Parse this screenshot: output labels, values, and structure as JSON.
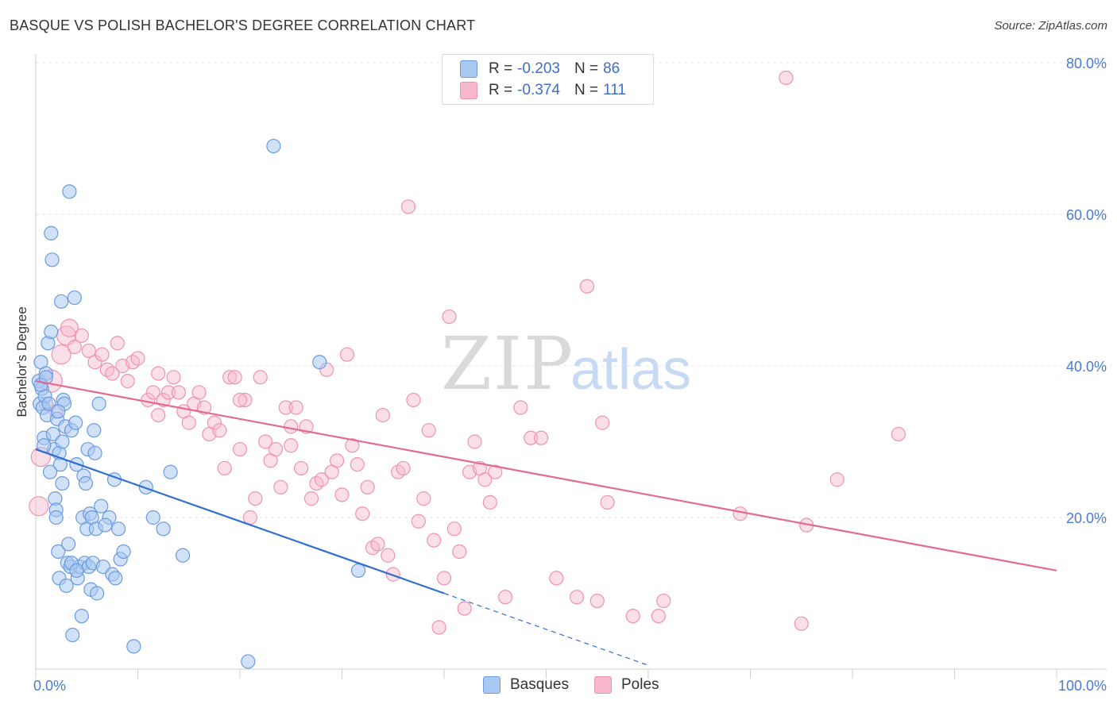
{
  "header": {
    "title": "BASQUE VS POLISH BACHELOR'S DEGREE CORRELATION CHART",
    "source": "Source: ZipAtlas.com"
  },
  "watermark": {
    "zip": "ZIP",
    "atlas": "atlas"
  },
  "legend_top": {
    "rows": [
      {
        "r_label": "R = ",
        "r_value": "-0.203",
        "n_label": "N = ",
        "n_value": "86",
        "color": "#a9c8f2"
      },
      {
        "r_label": "R = ",
        "r_value": "-0.374",
        "n_label": "N = ",
        "n_value": "111",
        "color": "#f7b8cc"
      }
    ]
  },
  "legend_bottom": {
    "items": [
      {
        "label": "Basques",
        "color": "#a9c8f2"
      },
      {
        "label": "Poles",
        "color": "#f7b8cc"
      }
    ]
  },
  "colors": {
    "basques_fill": "#a9c8f2",
    "basques_stroke": "#6a9be0",
    "basques_line": "#2f6fd4",
    "poles_fill": "#f7b8cc",
    "poles_stroke": "#ee93b0",
    "poles_line": "#e26a93",
    "tick_text": "#4a7bd0"
  },
  "chart_data": {
    "type": "scatter",
    "title": "BASQUE VS POLISH BACHELOR'S DEGREE CORRELATION CHART",
    "xlabel": "",
    "ylabel": "Bachelor's Degree",
    "xlim": [
      0,
      100
    ],
    "ylim": [
      0,
      82
    ],
    "x_tick_labels": [
      "0.0%",
      "100.0%"
    ],
    "y_ticks": [
      20,
      40,
      60,
      80
    ],
    "y_tick_labels": [
      "20.0%",
      "40.0%",
      "60.0%",
      "80.0%"
    ],
    "grid": true,
    "series": [
      {
        "name": "Basques",
        "trend": {
          "x0": 0,
          "y0": 29.0,
          "x1": 40,
          "y1": 10.0,
          "dashed_to_x": 60,
          "dashed_to_y": 0.5
        },
        "points": [
          [
            0.3,
            38.0
          ],
          [
            0.4,
            35.0
          ],
          [
            0.5,
            40.5
          ],
          [
            0.6,
            37.0
          ],
          [
            0.7,
            34.5
          ],
          [
            0.8,
            30.5
          ],
          [
            0.9,
            36.0
          ],
          [
            1.0,
            39.0
          ],
          [
            1.1,
            33.5
          ],
          [
            1.2,
            43.0
          ],
          [
            1.3,
            35.0
          ],
          [
            1.5,
            44.5
          ],
          [
            1.5,
            57.5
          ],
          [
            1.6,
            54.0
          ],
          [
            1.7,
            31.0
          ],
          [
            1.8,
            29.0
          ],
          [
            1.9,
            22.5
          ],
          [
            2.0,
            21.0
          ],
          [
            2.0,
            20.0
          ],
          [
            2.1,
            33.0
          ],
          [
            2.2,
            15.5
          ],
          [
            2.3,
            28.5
          ],
          [
            2.3,
            12.0
          ],
          [
            2.4,
            27.0
          ],
          [
            2.5,
            48.5
          ],
          [
            2.6,
            24.5
          ],
          [
            2.7,
            35.5
          ],
          [
            2.8,
            35.0
          ],
          [
            2.9,
            32.0
          ],
          [
            3.0,
            11.0
          ],
          [
            3.1,
            14.0
          ],
          [
            3.2,
            16.5
          ],
          [
            3.3,
            63.0
          ],
          [
            3.4,
            13.5
          ],
          [
            3.5,
            31.5
          ],
          [
            3.6,
            4.5
          ],
          [
            3.8,
            49.0
          ],
          [
            3.9,
            32.5
          ],
          [
            4.0,
            27.0
          ],
          [
            4.1,
            12.0
          ],
          [
            4.3,
            13.5
          ],
          [
            4.5,
            7.0
          ],
          [
            4.6,
            20.0
          ],
          [
            4.7,
            25.5
          ],
          [
            4.8,
            14.0
          ],
          [
            4.9,
            24.5
          ],
          [
            5.0,
            18.5
          ],
          [
            5.1,
            29.0
          ],
          [
            5.2,
            13.5
          ],
          [
            5.3,
            20.5
          ],
          [
            5.4,
            10.5
          ],
          [
            5.5,
            20.0
          ],
          [
            5.6,
            14.0
          ],
          [
            5.7,
            31.5
          ],
          [
            5.8,
            28.5
          ],
          [
            5.9,
            18.5
          ],
          [
            6.0,
            10.0
          ],
          [
            6.2,
            35.0
          ],
          [
            6.4,
            21.5
          ],
          [
            6.6,
            13.5
          ],
          [
            7.2,
            20.0
          ],
          [
            7.5,
            12.5
          ],
          [
            7.7,
            25.0
          ],
          [
            7.8,
            12.0
          ],
          [
            8.1,
            18.5
          ],
          [
            8.3,
            14.5
          ],
          [
            8.6,
            15.5
          ],
          [
            9.6,
            3.0
          ],
          [
            10.8,
            24.0
          ],
          [
            11.5,
            20.0
          ],
          [
            12.5,
            18.5
          ],
          [
            13.2,
            26.0
          ],
          [
            14.4,
            15.0
          ],
          [
            20.8,
            1.0
          ],
          [
            23.3,
            69.0
          ],
          [
            27.8,
            40.5
          ],
          [
            31.6,
            13.0
          ],
          [
            0.8,
            29.5
          ],
          [
            1.4,
            26.0
          ],
          [
            2.6,
            30.0
          ],
          [
            3.5,
            14.0
          ],
          [
            4.0,
            13.0
          ],
          [
            6.8,
            19.0
          ],
          [
            0.5,
            37.5
          ],
          [
            1.0,
            38.5
          ],
          [
            2.2,
            34.0
          ]
        ]
      },
      {
        "name": "Poles",
        "trend": {
          "x0": 0,
          "y0": 38.0,
          "x1": 100,
          "y1": 13.0
        },
        "points": [
          [
            0.3,
            21.5
          ],
          [
            0.5,
            28.0
          ],
          [
            1.5,
            38.0
          ],
          [
            2.5,
            41.5
          ],
          [
            3.0,
            44.0
          ],
          [
            3.3,
            45.0
          ],
          [
            3.8,
            42.5
          ],
          [
            4.5,
            44.0
          ],
          [
            5.2,
            42.0
          ],
          [
            5.8,
            40.5
          ],
          [
            6.5,
            41.5
          ],
          [
            7.0,
            39.5
          ],
          [
            7.5,
            39.0
          ],
          [
            8.0,
            43.0
          ],
          [
            8.5,
            40.0
          ],
          [
            9.5,
            40.5
          ],
          [
            10.0,
            41.0
          ],
          [
            11.0,
            35.5
          ],
          [
            11.5,
            36.5
          ],
          [
            12.0,
            39.0
          ],
          [
            12.5,
            35.5
          ],
          [
            13.0,
            36.5
          ],
          [
            13.5,
            38.5
          ],
          [
            14.0,
            36.5
          ],
          [
            14.5,
            34.0
          ],
          [
            15.0,
            32.5
          ],
          [
            15.5,
            35.0
          ],
          [
            16.0,
            36.5
          ],
          [
            16.5,
            34.5
          ],
          [
            17.0,
            31.0
          ],
          [
            17.5,
            32.5
          ],
          [
            18.0,
            31.5
          ],
          [
            18.5,
            26.5
          ],
          [
            19.0,
            38.5
          ],
          [
            19.5,
            38.5
          ],
          [
            20.0,
            29.0
          ],
          [
            20.5,
            35.5
          ],
          [
            21.0,
            20.0
          ],
          [
            21.5,
            22.5
          ],
          [
            22.0,
            38.5
          ],
          [
            22.5,
            30.0
          ],
          [
            23.0,
            27.5
          ],
          [
            23.5,
            29.0
          ],
          [
            24.0,
            24.0
          ],
          [
            24.5,
            34.5
          ],
          [
            25.0,
            32.0
          ],
          [
            25.5,
            34.5
          ],
          [
            26.0,
            26.5
          ],
          [
            26.5,
            32.0
          ],
          [
            27.0,
            22.5
          ],
          [
            27.5,
            24.5
          ],
          [
            28.0,
            25.0
          ],
          [
            28.5,
            39.5
          ],
          [
            29.0,
            26.0
          ],
          [
            29.5,
            27.5
          ],
          [
            30.0,
            23.0
          ],
          [
            30.5,
            41.5
          ],
          [
            31.0,
            29.5
          ],
          [
            31.5,
            27.0
          ],
          [
            32.0,
            20.5
          ],
          [
            32.5,
            24.0
          ],
          [
            33.0,
            16.0
          ],
          [
            33.5,
            16.5
          ],
          [
            34.0,
            33.5
          ],
          [
            34.5,
            15.0
          ],
          [
            35.0,
            12.5
          ],
          [
            35.5,
            26.0
          ],
          [
            36.0,
            26.5
          ],
          [
            36.5,
            61.0
          ],
          [
            37.0,
            35.5
          ],
          [
            37.5,
            19.5
          ],
          [
            38.0,
            22.5
          ],
          [
            38.5,
            31.5
          ],
          [
            39.0,
            17.0
          ],
          [
            39.5,
            5.5
          ],
          [
            40.0,
            12.0
          ],
          [
            40.5,
            46.5
          ],
          [
            41.0,
            18.5
          ],
          [
            41.5,
            15.5
          ],
          [
            42.0,
            8.0
          ],
          [
            42.5,
            26.0
          ],
          [
            43.0,
            30.0
          ],
          [
            43.5,
            26.5
          ],
          [
            44.0,
            25.0
          ],
          [
            44.5,
            22.0
          ],
          [
            45.0,
            26.0
          ],
          [
            46.0,
            9.5
          ],
          [
            47.5,
            34.5
          ],
          [
            48.5,
            30.5
          ],
          [
            49.5,
            30.5
          ],
          [
            51.0,
            12.0
          ],
          [
            53.0,
            9.5
          ],
          [
            54.0,
            50.5
          ],
          [
            55.0,
            9.0
          ],
          [
            55.5,
            32.5
          ],
          [
            56.0,
            22.0
          ],
          [
            58.5,
            7.0
          ],
          [
            61.0,
            7.0
          ],
          [
            61.5,
            9.0
          ],
          [
            69.0,
            20.5
          ],
          [
            73.5,
            78.0
          ],
          [
            75.0,
            6.0
          ],
          [
            75.5,
            19.0
          ],
          [
            78.5,
            25.0
          ],
          [
            84.5,
            31.0
          ],
          [
            1.0,
            35.0
          ],
          [
            2.0,
            34.0
          ],
          [
            9.0,
            38.0
          ],
          [
            12.0,
            33.5
          ],
          [
            20.0,
            35.5
          ],
          [
            25.0,
            29.5
          ]
        ]
      }
    ]
  }
}
